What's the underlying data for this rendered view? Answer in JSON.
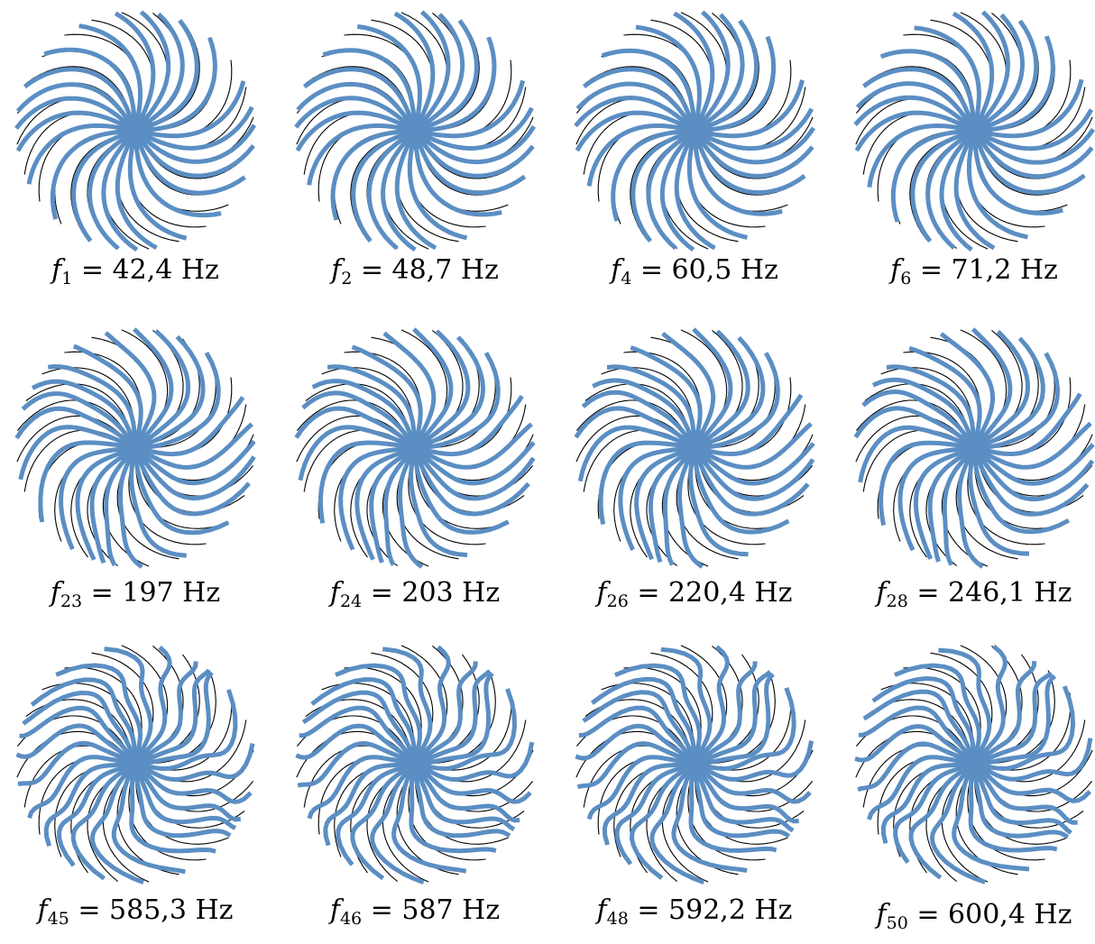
{
  "figure": {
    "colors": {
      "reference_curve": "#000000",
      "mode_curve": "#5b8ec3"
    },
    "unit": "Hz",
    "panels": [
      {
        "id": "f1",
        "symbol": "f",
        "index": "1",
        "value": "42,4",
        "twist": 0.8
      },
      {
        "id": "f2",
        "symbol": "f",
        "index": "2",
        "value": "48,7",
        "twist": 0.9
      },
      {
        "id": "f4",
        "symbol": "f",
        "index": "4",
        "value": "60,5",
        "twist": 1.0
      },
      {
        "id": "f6",
        "symbol": "f",
        "index": "6",
        "value": "71,2",
        "twist": 1.1
      },
      {
        "id": "f23",
        "symbol": "f",
        "index": "23",
        "value": "197",
        "twist": 1.6
      },
      {
        "id": "f24",
        "symbol": "f",
        "index": "24",
        "value": "203",
        "twist": 1.7
      },
      {
        "id": "f26",
        "symbol": "f",
        "index": "26",
        "value": "220,4",
        "twist": 1.8
      },
      {
        "id": "f28",
        "symbol": "f",
        "index": "28",
        "value": "246,1",
        "twist": 1.9
      },
      {
        "id": "f45",
        "symbol": "f",
        "index": "45",
        "value": "585,3",
        "twist": 2.6
      },
      {
        "id": "f46",
        "symbol": "f",
        "index": "46",
        "value": "587",
        "twist": 2.7
      },
      {
        "id": "f48",
        "symbol": "f",
        "index": "48",
        "value": "592,2",
        "twist": 2.8
      },
      {
        "id": "f50",
        "symbol": "f",
        "index": "50",
        "value": "600,4",
        "twist": 3.0
      }
    ]
  }
}
